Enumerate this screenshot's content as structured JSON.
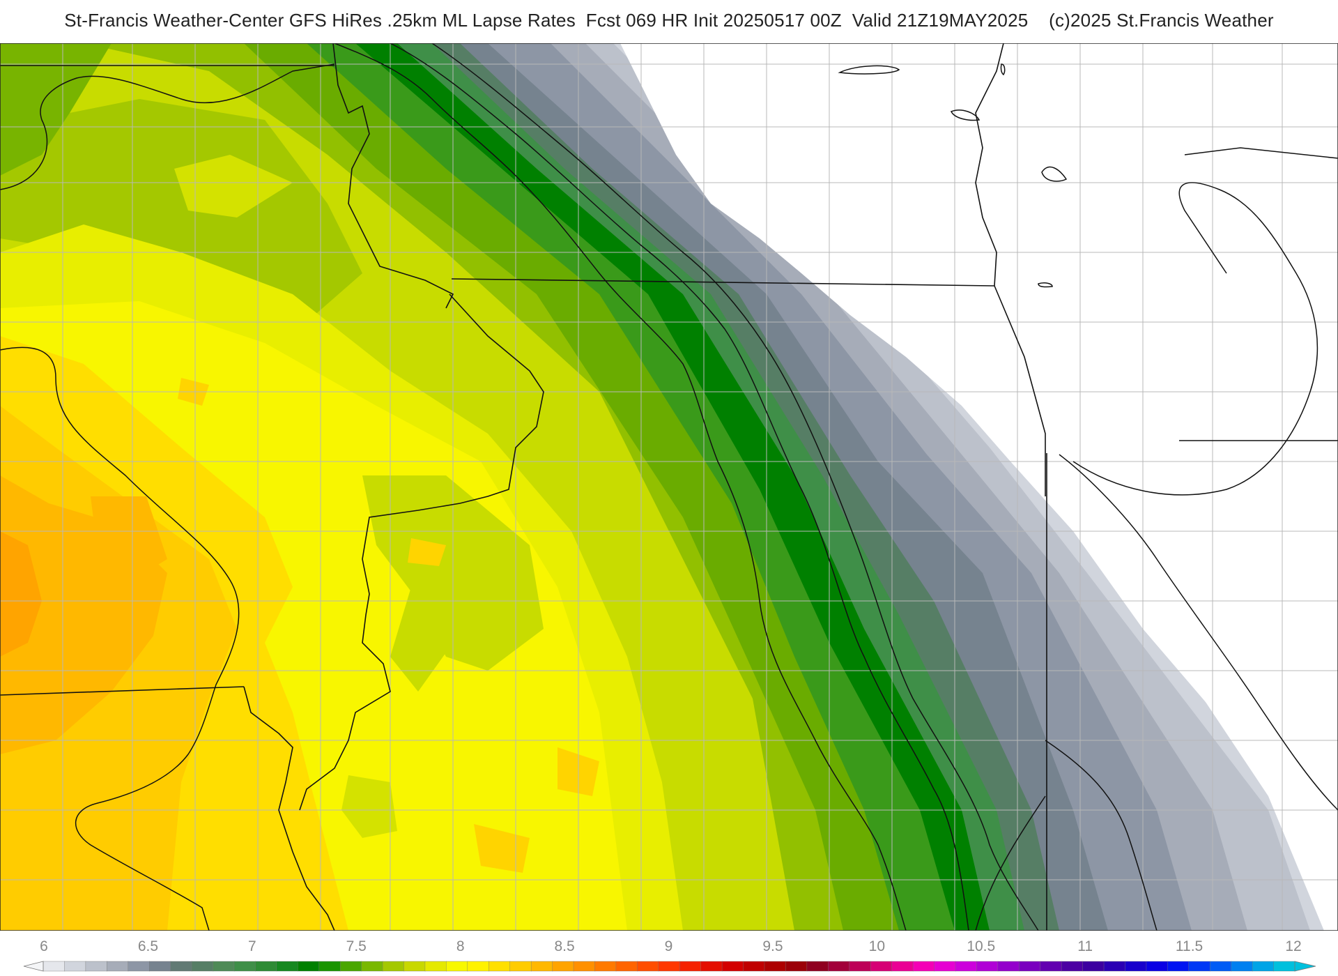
{
  "header": {
    "title": "St-Francis Weather-Center GFS HiRes .25km ML Lapse Rates  Fcst 069 HR Init 20250517 00Z  Valid 21Z19MAY2025    (c)2025 St.Francis Weather"
  },
  "legend": {
    "ticks": [
      "6",
      "6.5",
      "7",
      "7.5",
      "8",
      "8.5",
      "9",
      "9.5",
      "10",
      "10.5",
      "11",
      "11.5",
      "12"
    ],
    "colors": [
      "#e5e7ec",
      "#d1d5dd",
      "#bcc1cb",
      "#a6acb8",
      "#8d96a5",
      "#76838f",
      "#627a74",
      "#567e65",
      "#4f8a57",
      "#3f8f48",
      "#2e8b35",
      "#168820",
      "#008000",
      "#1a9400",
      "#4aa600",
      "#79b800",
      "#a4c800",
      "#c8d800",
      "#e5e900",
      "#f8f800",
      "#fff200",
      "#ffe000",
      "#ffcc00",
      "#ffb800",
      "#ffa400",
      "#ff9000",
      "#ff7a00",
      "#ff6400",
      "#ff4e00",
      "#ff3800",
      "#f52200",
      "#e40f00",
      "#d30000",
      "#c00000",
      "#ad0000",
      "#9b0008",
      "#8f0020",
      "#a2003a",
      "#bd0057",
      "#d60075",
      "#ea0094",
      "#f400b6",
      "#e600d2",
      "#cc00dc",
      "#b000d6",
      "#9400cc",
      "#7a00bf",
      "#6200b0",
      "#4c00a3",
      "#3c00a0",
      "#2a00b4",
      "#1800cc",
      "#0a00e4",
      "#0014f2",
      "#0038f5",
      "#005cf5",
      "#0080f0",
      "#00a4e6",
      "#00c0dd"
    ]
  }
}
